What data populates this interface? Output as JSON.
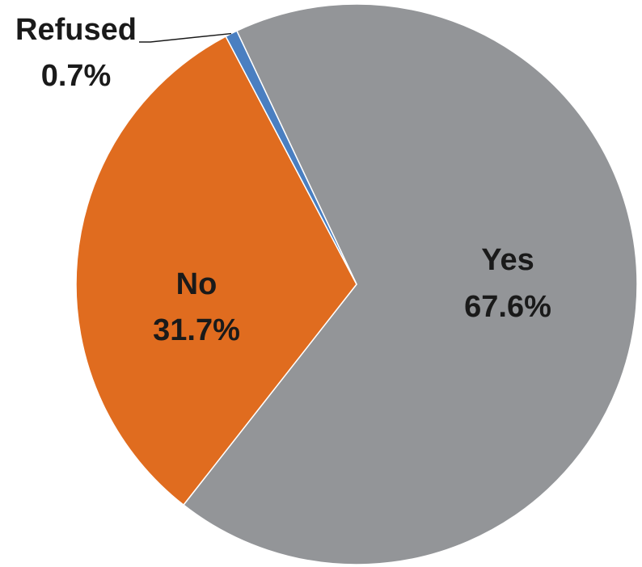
{
  "chart_data": {
    "type": "pie",
    "title": "",
    "slices": [
      {
        "label": "Yes",
        "value": 67.6,
        "value_label": "67.6%",
        "color": "#939598"
      },
      {
        "label": "No",
        "value": 31.7,
        "value_label": "31.7%",
        "color": "#e06c1f"
      },
      {
        "label": "Refused",
        "value": 0.7,
        "value_label": "0.7%",
        "color": "#4a7fc1"
      }
    ],
    "legend": "none",
    "labels": "data labels on/near slices"
  }
}
